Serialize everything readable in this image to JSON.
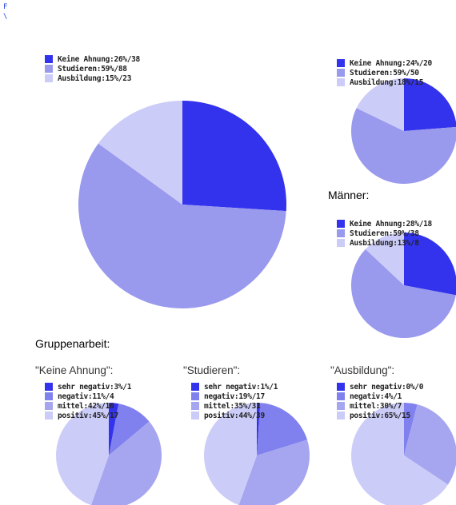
{
  "corner_marks": [
    "F",
    "\\"
  ],
  "colors": {
    "blue": "#3333ee",
    "medium": "#9999ee",
    "light": "#ccccf8",
    "blue4": "#3333ee",
    "med4a": "#8080ee",
    "med4b": "#a6a6f0",
    "light4": "#ccccf8"
  },
  "headings": {
    "maenner": "Männer:",
    "gruppenarbeit": "Gruppenarbeit:"
  },
  "subheadings": {
    "keine_ahnung": "\"Keine Ahnung\":",
    "studieren": "\"Studieren\":",
    "ausbildung": "\"Ausbildung\":"
  },
  "chart_data": [
    {
      "type": "pie",
      "title": "",
      "labels": [
        "Keine Ahnung:26%/38",
        "Studieren:59%/88",
        "Ausbildung:15%/23"
      ],
      "values": [
        26,
        59,
        15
      ],
      "counts": [
        38,
        88,
        23
      ]
    },
    {
      "type": "pie",
      "title": "",
      "labels": [
        "Keine Ahnung:24%/20",
        "Studieren:59%/50",
        "Ausbildung:18%/15"
      ],
      "values": [
        24,
        59,
        18
      ],
      "counts": [
        20,
        50,
        15
      ]
    },
    {
      "type": "pie",
      "title": "Männer:",
      "labels": [
        "Keine Ahnung:28%/18",
        "Studieren:59%/38",
        "Ausbildung:13%/8"
      ],
      "values": [
        28,
        59,
        13
      ],
      "counts": [
        18,
        38,
        8
      ]
    },
    {
      "type": "pie",
      "title": "\"Keine Ahnung\":",
      "labels": [
        "sehr negativ:3%/1",
        "negativ:11%/4",
        "mittel:42%/16",
        "positiv:45%/17"
      ],
      "values": [
        3,
        11,
        42,
        45
      ],
      "counts": [
        1,
        4,
        16,
        17
      ]
    },
    {
      "type": "pie",
      "title": "\"Studieren\":",
      "labels": [
        "sehr negativ:1%/1",
        "negativ:19%/17",
        "mittel:35%/31",
        "positiv:44%/39"
      ],
      "values": [
        1,
        19,
        35,
        44
      ],
      "counts": [
        1,
        17,
        31,
        39
      ]
    },
    {
      "type": "pie",
      "title": "\"Ausbildung\":",
      "labels": [
        "sehr negativ:0%/0",
        "negativ:4%/1",
        "mittel:30%/7",
        "positiv:65%/15"
      ],
      "values": [
        0,
        4,
        30,
        65
      ],
      "counts": [
        0,
        1,
        7,
        15
      ]
    }
  ]
}
